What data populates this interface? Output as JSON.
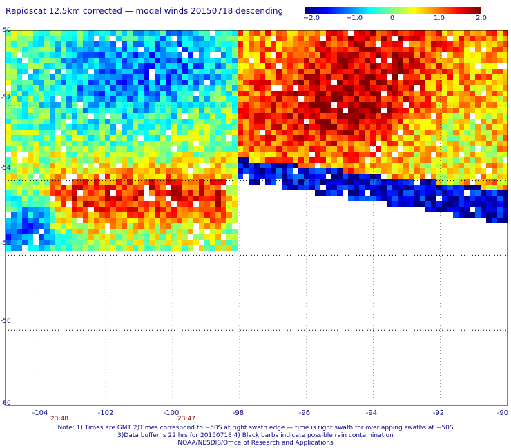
{
  "title": "Rapidscat 12.5km corrected — model winds 20150718 descending",
  "colorbar": {
    "ticks": [
      {
        "value": -2.0,
        "label": "−2.0"
      },
      {
        "value": -1.0,
        "label": "−1.0"
      },
      {
        "value": 0,
        "label": "0"
      },
      {
        "value": 1.0,
        "label": "1.0"
      },
      {
        "value": 2.0,
        "label": "2.0"
      }
    ],
    "min": -2.0,
    "max": 2.0,
    "colors": [
      "#00007f",
      "#0000ff",
      "#0080ff",
      "#00ffff",
      "#80ff80",
      "#ffff00",
      "#ff8000",
      "#ff0000",
      "#7f0000"
    ]
  },
  "map": {
    "lon_range": [
      -105,
      -90
    ],
    "lat_range": [
      -60,
      -50
    ],
    "lat_ticks": [
      {
        "value": -50,
        "label": "-50"
      },
      {
        "value": -52,
        "label": "-52"
      },
      {
        "value": -54,
        "label": "-54"
      },
      {
        "value": -56,
        "label": "-56"
      },
      {
        "value": -58,
        "label": "-58"
      },
      {
        "value": -60,
        "label": "-60"
      }
    ],
    "lon_ticks": [
      {
        "value": -104,
        "label": "-104"
      },
      {
        "value": -102,
        "label": "-102"
      },
      {
        "value": -100,
        "label": "-100"
      },
      {
        "value": -98,
        "label": "-98"
      },
      {
        "value": -96,
        "label": "-96"
      },
      {
        "value": -94,
        "label": "-94"
      },
      {
        "value": -92,
        "label": "-92"
      },
      {
        "value": -90,
        "label": "-90"
      }
    ],
    "time_labels": [
      {
        "lon": -103.6,
        "label": "23:48"
      },
      {
        "lon": -99.7,
        "label": "23:47"
      }
    ]
  },
  "notes": [
    "Note: 1) Times are GMT 2)Times correspond to −50S at right swath edge — time is right swath for overlapping swaths at −50S",
    "3)Data buffer is 22 hrs for 20150718 4) Black barbs indicate possible rain contamination",
    "NOAA/NESDIS/Office of Research and Applications"
  ]
}
